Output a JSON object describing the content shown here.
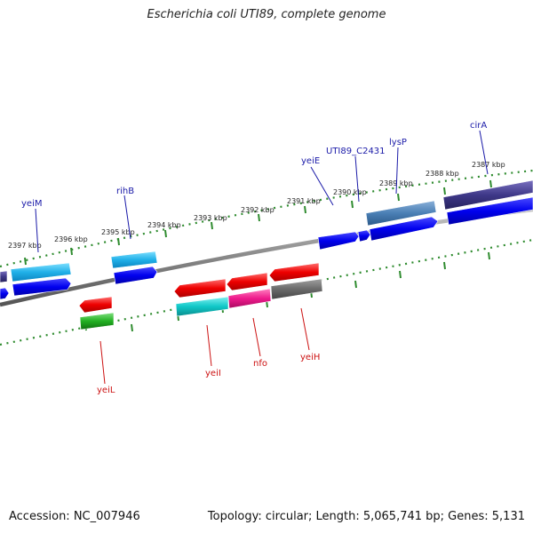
{
  "header": {
    "title": "Escherichia coli UTI89, complete genome"
  },
  "footer": {
    "accession": "Accession: NC_007946",
    "summary": "Topology: circular; Length: 5,065,741 bp; Genes: 5,131"
  },
  "colors": {
    "tick_green": "#2e8b2e",
    "forward_label": "#1a1aa8",
    "reverse_label": "#cc1111",
    "backbone": "#808080"
  },
  "axis": {
    "tick_labels": [
      "2387 kbp",
      "2388 kbp",
      "2389 kbp",
      "2390 kbp",
      "2391 kbp",
      "2392 kbp",
      "2393 kbp",
      "2394 kbp",
      "2395 kbp",
      "2396 kbp",
      "2397 kbp"
    ]
  },
  "genes": {
    "forward_labels": [
      "yeiM",
      "rihB",
      "yeiE",
      "UTI89_C2431",
      "lysP",
      "cirA"
    ],
    "reverse_labels": [
      "yeiL",
      "yeiI",
      "nfo",
      "yeiH"
    ]
  }
}
